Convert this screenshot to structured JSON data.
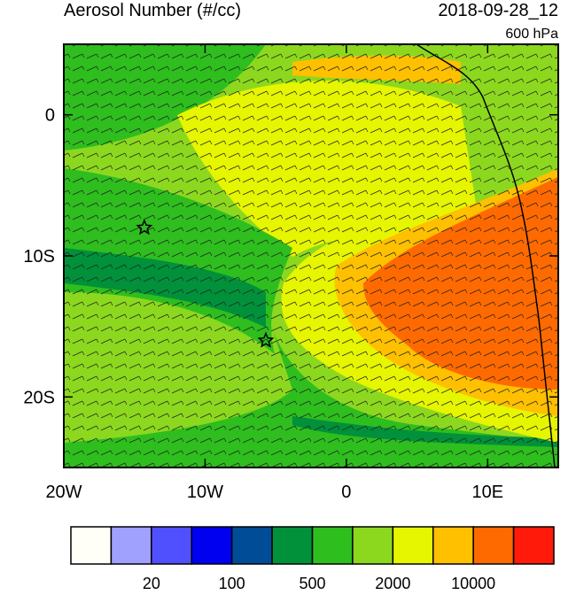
{
  "chart_data": {
    "type": "map",
    "title": "Aerosol Number (#/cc)",
    "date": "2018-09-28_12",
    "level": "600 hPa",
    "xlim": [
      -20,
      15
    ],
    "ylim": [
      -25,
      5
    ],
    "xticks": [
      {
        "value": -20,
        "label": "20W"
      },
      {
        "value": -10,
        "label": "10W"
      },
      0,
      {
        "value": 10,
        "label": "10E"
      }
    ],
    "yticks": [
      0,
      {
        "value": -10,
        "label": "10S"
      },
      {
        "value": -20,
        "label": "20S"
      }
    ],
    "markers": [
      {
        "lon": -14.3,
        "lat": -8.0
      },
      {
        "lon": -5.7,
        "lat": -16.0
      }
    ],
    "colorbar": {
      "colors": [
        "#fffff8",
        "#a0a0ff",
        "#5050ff",
        "#0000f0",
        "#004c97",
        "#00913a",
        "#2ebe1e",
        "#8cd81e",
        "#e6f500",
        "#ffc000",
        "#ff6a00",
        "#ff1a0a"
      ],
      "labels": [
        "20",
        "100",
        "500",
        "2000",
        "10000"
      ]
    }
  }
}
